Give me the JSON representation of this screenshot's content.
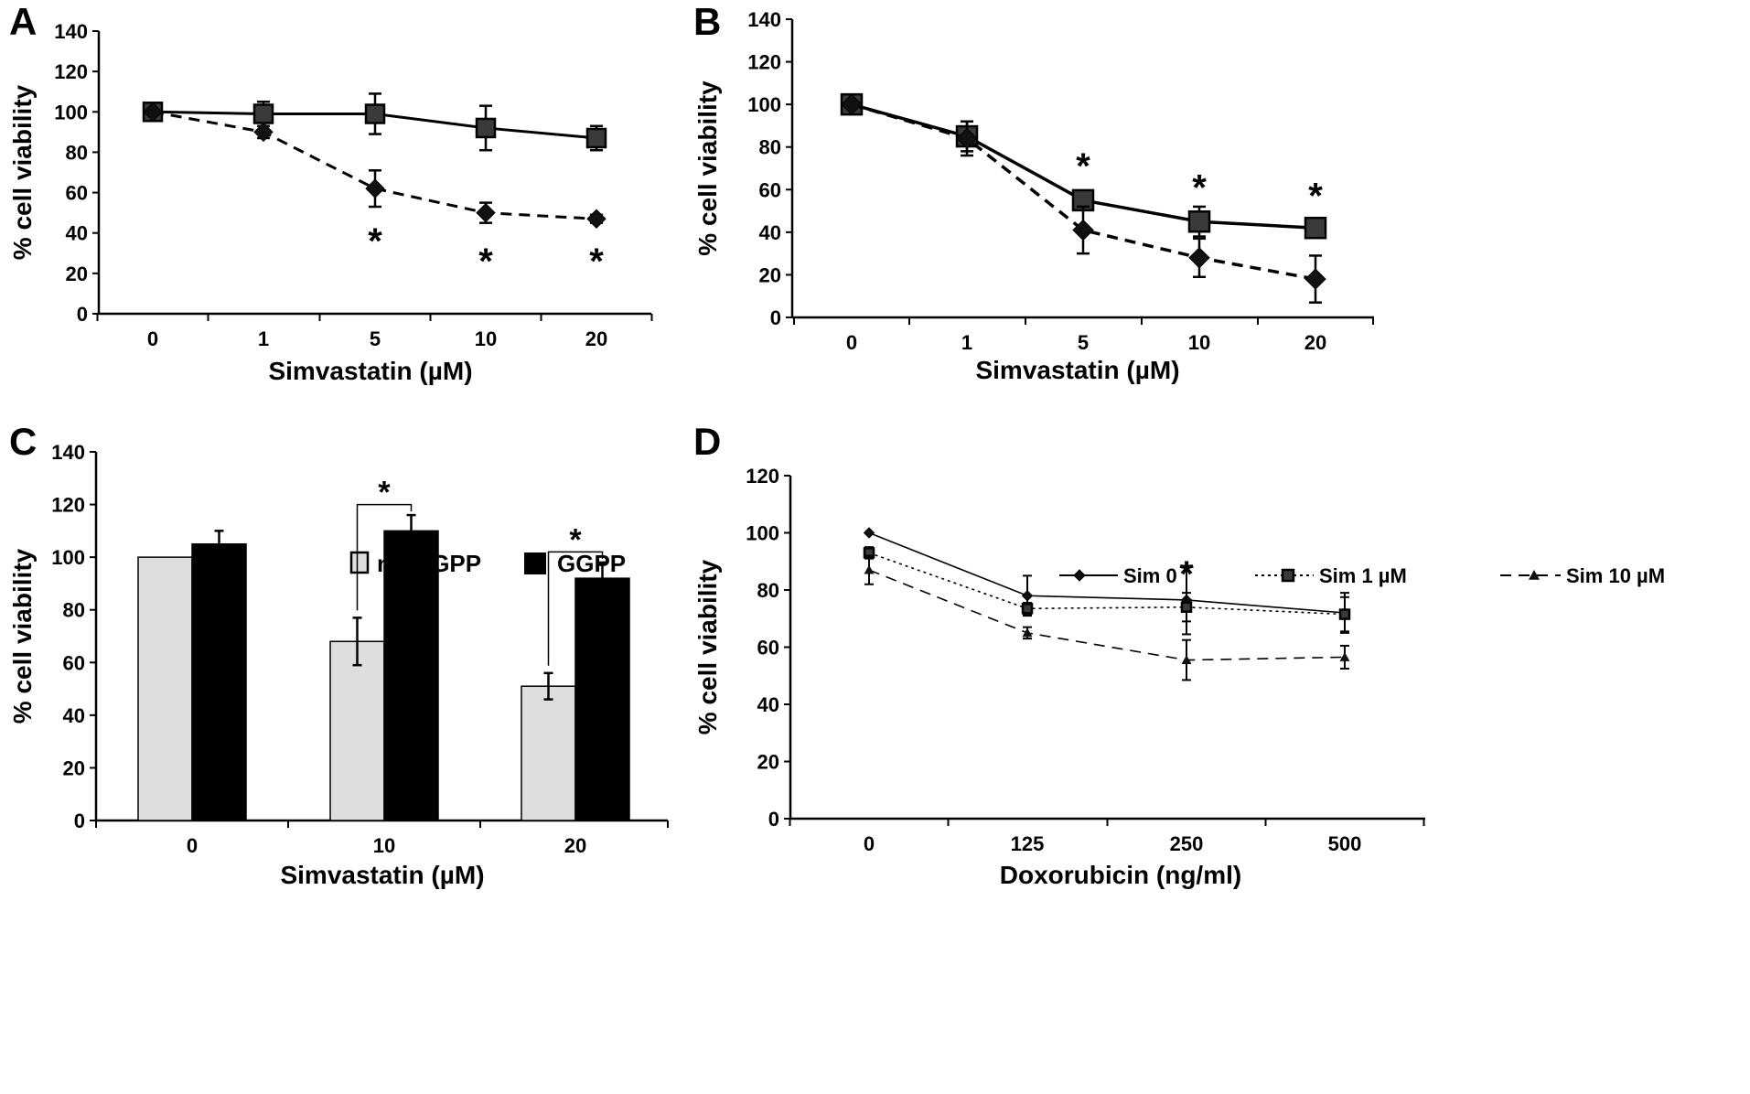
{
  "chart_data": [
    {
      "panel": "A",
      "type": "line",
      "title": "",
      "xlabel": "Simvastatin (µM)",
      "ylabel": "% cell viability",
      "categories": [
        "0",
        "1",
        "5",
        "10",
        "20"
      ],
      "ylim": [
        0,
        140
      ],
      "yticks": [
        "0",
        "20",
        "40",
        "60",
        "80",
        "100",
        "120",
        "140"
      ],
      "series": [
        {
          "name": "square solid",
          "marker": "square",
          "line": "solid",
          "values": [
            100,
            99,
            99,
            92,
            87
          ],
          "errors": [
            0,
            6,
            10,
            11,
            6
          ]
        },
        {
          "name": "diamond dashed",
          "marker": "diamond",
          "line": "dashed",
          "values": [
            100,
            90,
            62,
            50,
            47
          ],
          "errors": [
            0,
            3,
            9,
            5,
            2
          ]
        }
      ],
      "annotations": [
        {
          "text": "*",
          "category": "5",
          "y": 38
        },
        {
          "text": "*",
          "category": "10",
          "y": 28
        },
        {
          "text": "*",
          "category": "20",
          "y": 28
        }
      ]
    },
    {
      "panel": "B",
      "type": "line",
      "title": "",
      "xlabel": "Simvastatin (µM)",
      "ylabel": "% cell viability",
      "categories": [
        "0",
        "1",
        "5",
        "10",
        "20"
      ],
      "ylim": [
        0,
        140
      ],
      "yticks": [
        "0",
        "20",
        "40",
        "60",
        "80",
        "100",
        "120",
        "140"
      ],
      "series": [
        {
          "name": "square solid",
          "marker": "square",
          "line": "solid",
          "values": [
            100,
            85,
            55,
            45,
            42
          ],
          "errors": [
            0,
            7,
            4,
            7,
            3
          ]
        },
        {
          "name": "diamond dashed",
          "marker": "diamond",
          "line": "dashed",
          "values": [
            100,
            84,
            41,
            28,
            18
          ],
          "errors": [
            0,
            8,
            11,
            9,
            11
          ]
        }
      ],
      "annotations": [
        {
          "text": "*",
          "category": "5",
          "y": 73
        },
        {
          "text": "*",
          "category": "10",
          "y": 63
        },
        {
          "text": "*",
          "category": "20",
          "y": 59
        }
      ]
    },
    {
      "panel": "C",
      "type": "bar",
      "title": "",
      "xlabel": "Simvastatin (µM)",
      "ylabel": "% cell viability",
      "categories": [
        "0",
        "10",
        "20"
      ],
      "ylim": [
        0,
        140
      ],
      "yticks": [
        "0",
        "20",
        "40",
        "60",
        "80",
        "100",
        "120",
        "140"
      ],
      "legend_position": "top-center",
      "series": [
        {
          "name": "no GGPP",
          "color": "#dedede",
          "values": [
            100,
            68,
            51
          ],
          "errors": [
            0,
            9,
            5
          ]
        },
        {
          "name": "GGPP",
          "color": "#000000",
          "values": [
            105,
            110,
            92
          ],
          "errors": [
            5,
            6,
            6
          ]
        }
      ],
      "significance": [
        {
          "category": "10",
          "text": "*",
          "bracket_y": 120
        },
        {
          "category": "20",
          "text": "*",
          "bracket_y": 102
        }
      ]
    },
    {
      "panel": "D",
      "type": "line",
      "title": "",
      "xlabel": "Doxorubicin (ng/ml)",
      "ylabel": "% cell viability",
      "categories": [
        "0",
        "125",
        "250",
        "500"
      ],
      "ylim": [
        0,
        120
      ],
      "yticks": [
        "0",
        "20",
        "40",
        "60",
        "80",
        "100",
        "120"
      ],
      "legend_position": "top",
      "series": [
        {
          "name": "Sim 0",
          "marker": "diamond",
          "line": "solid",
          "values": [
            100,
            78,
            76.5,
            72
          ],
          "errors": [
            0,
            7,
            12,
            7
          ]
        },
        {
          "name": "Sim 1 µM",
          "marker": "square",
          "line": "dotted",
          "values": [
            93,
            73.5,
            74,
            71.5
          ],
          "errors": [
            2,
            2,
            5,
            6
          ]
        },
        {
          "name": "Sim 10 µM",
          "marker": "triangle",
          "line": "dashed",
          "values": [
            87,
            65,
            55.5,
            56.5
          ],
          "errors": [
            5,
            2,
            7,
            4
          ]
        }
      ],
      "annotations": [
        {
          "text": "*",
          "category": "250",
          "y": 87
        }
      ]
    }
  ]
}
